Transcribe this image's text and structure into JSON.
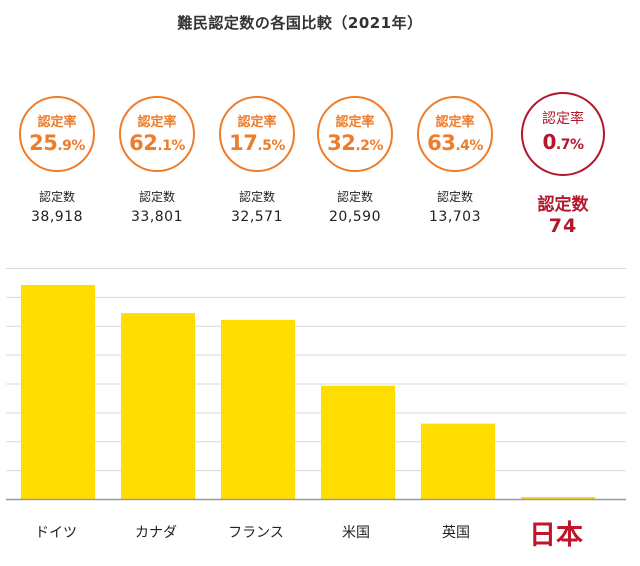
{
  "title": "難民認定数の各国比較（2021年）",
  "colors": {
    "bar": "#ffdd00",
    "rate_circle": "#ee7d2b",
    "japan": "#c0162a",
    "grid": "#d9d9d9",
    "baseline": "#999999"
  },
  "rate_label": "認定率",
  "count_label": "認定数",
  "countries": [
    {
      "name": "ドイツ",
      "rate_int": "25",
      "rate_dec": ".9%",
      "count": "38,918"
    },
    {
      "name": "カナダ",
      "rate_int": "62",
      "rate_dec": ".1%",
      "count": "33,801"
    },
    {
      "name": "フランス",
      "rate_int": "17",
      "rate_dec": ".5%",
      "count": "32,571"
    },
    {
      "name": "米国",
      "rate_int": "32",
      "rate_dec": ".2%",
      "count": "20,590"
    },
    {
      "name": "英国",
      "rate_int": "63",
      "rate_dec": ".4%",
      "count": "13,703"
    },
    {
      "name": "日本",
      "rate_int": "0",
      "rate_dec": ".7%",
      "count": "74",
      "highlight": true
    }
  ],
  "chart_data": {
    "type": "bar",
    "title": "難民認定数の各国比較（2021年）",
    "xlabel": "",
    "ylabel": "",
    "categories": [
      "ドイツ",
      "カナダ",
      "フランス",
      "米国",
      "英国",
      "日本"
    ],
    "values": [
      38918,
      33801,
      32571,
      20590,
      13703,
      74
    ],
    "ylim": [
      0,
      42000
    ],
    "grid": true,
    "annotations": {
      "認定率": [
        "25.9%",
        "62.1%",
        "17.5%",
        "32.2%",
        "63.4%",
        "0.7%"
      ]
    }
  }
}
